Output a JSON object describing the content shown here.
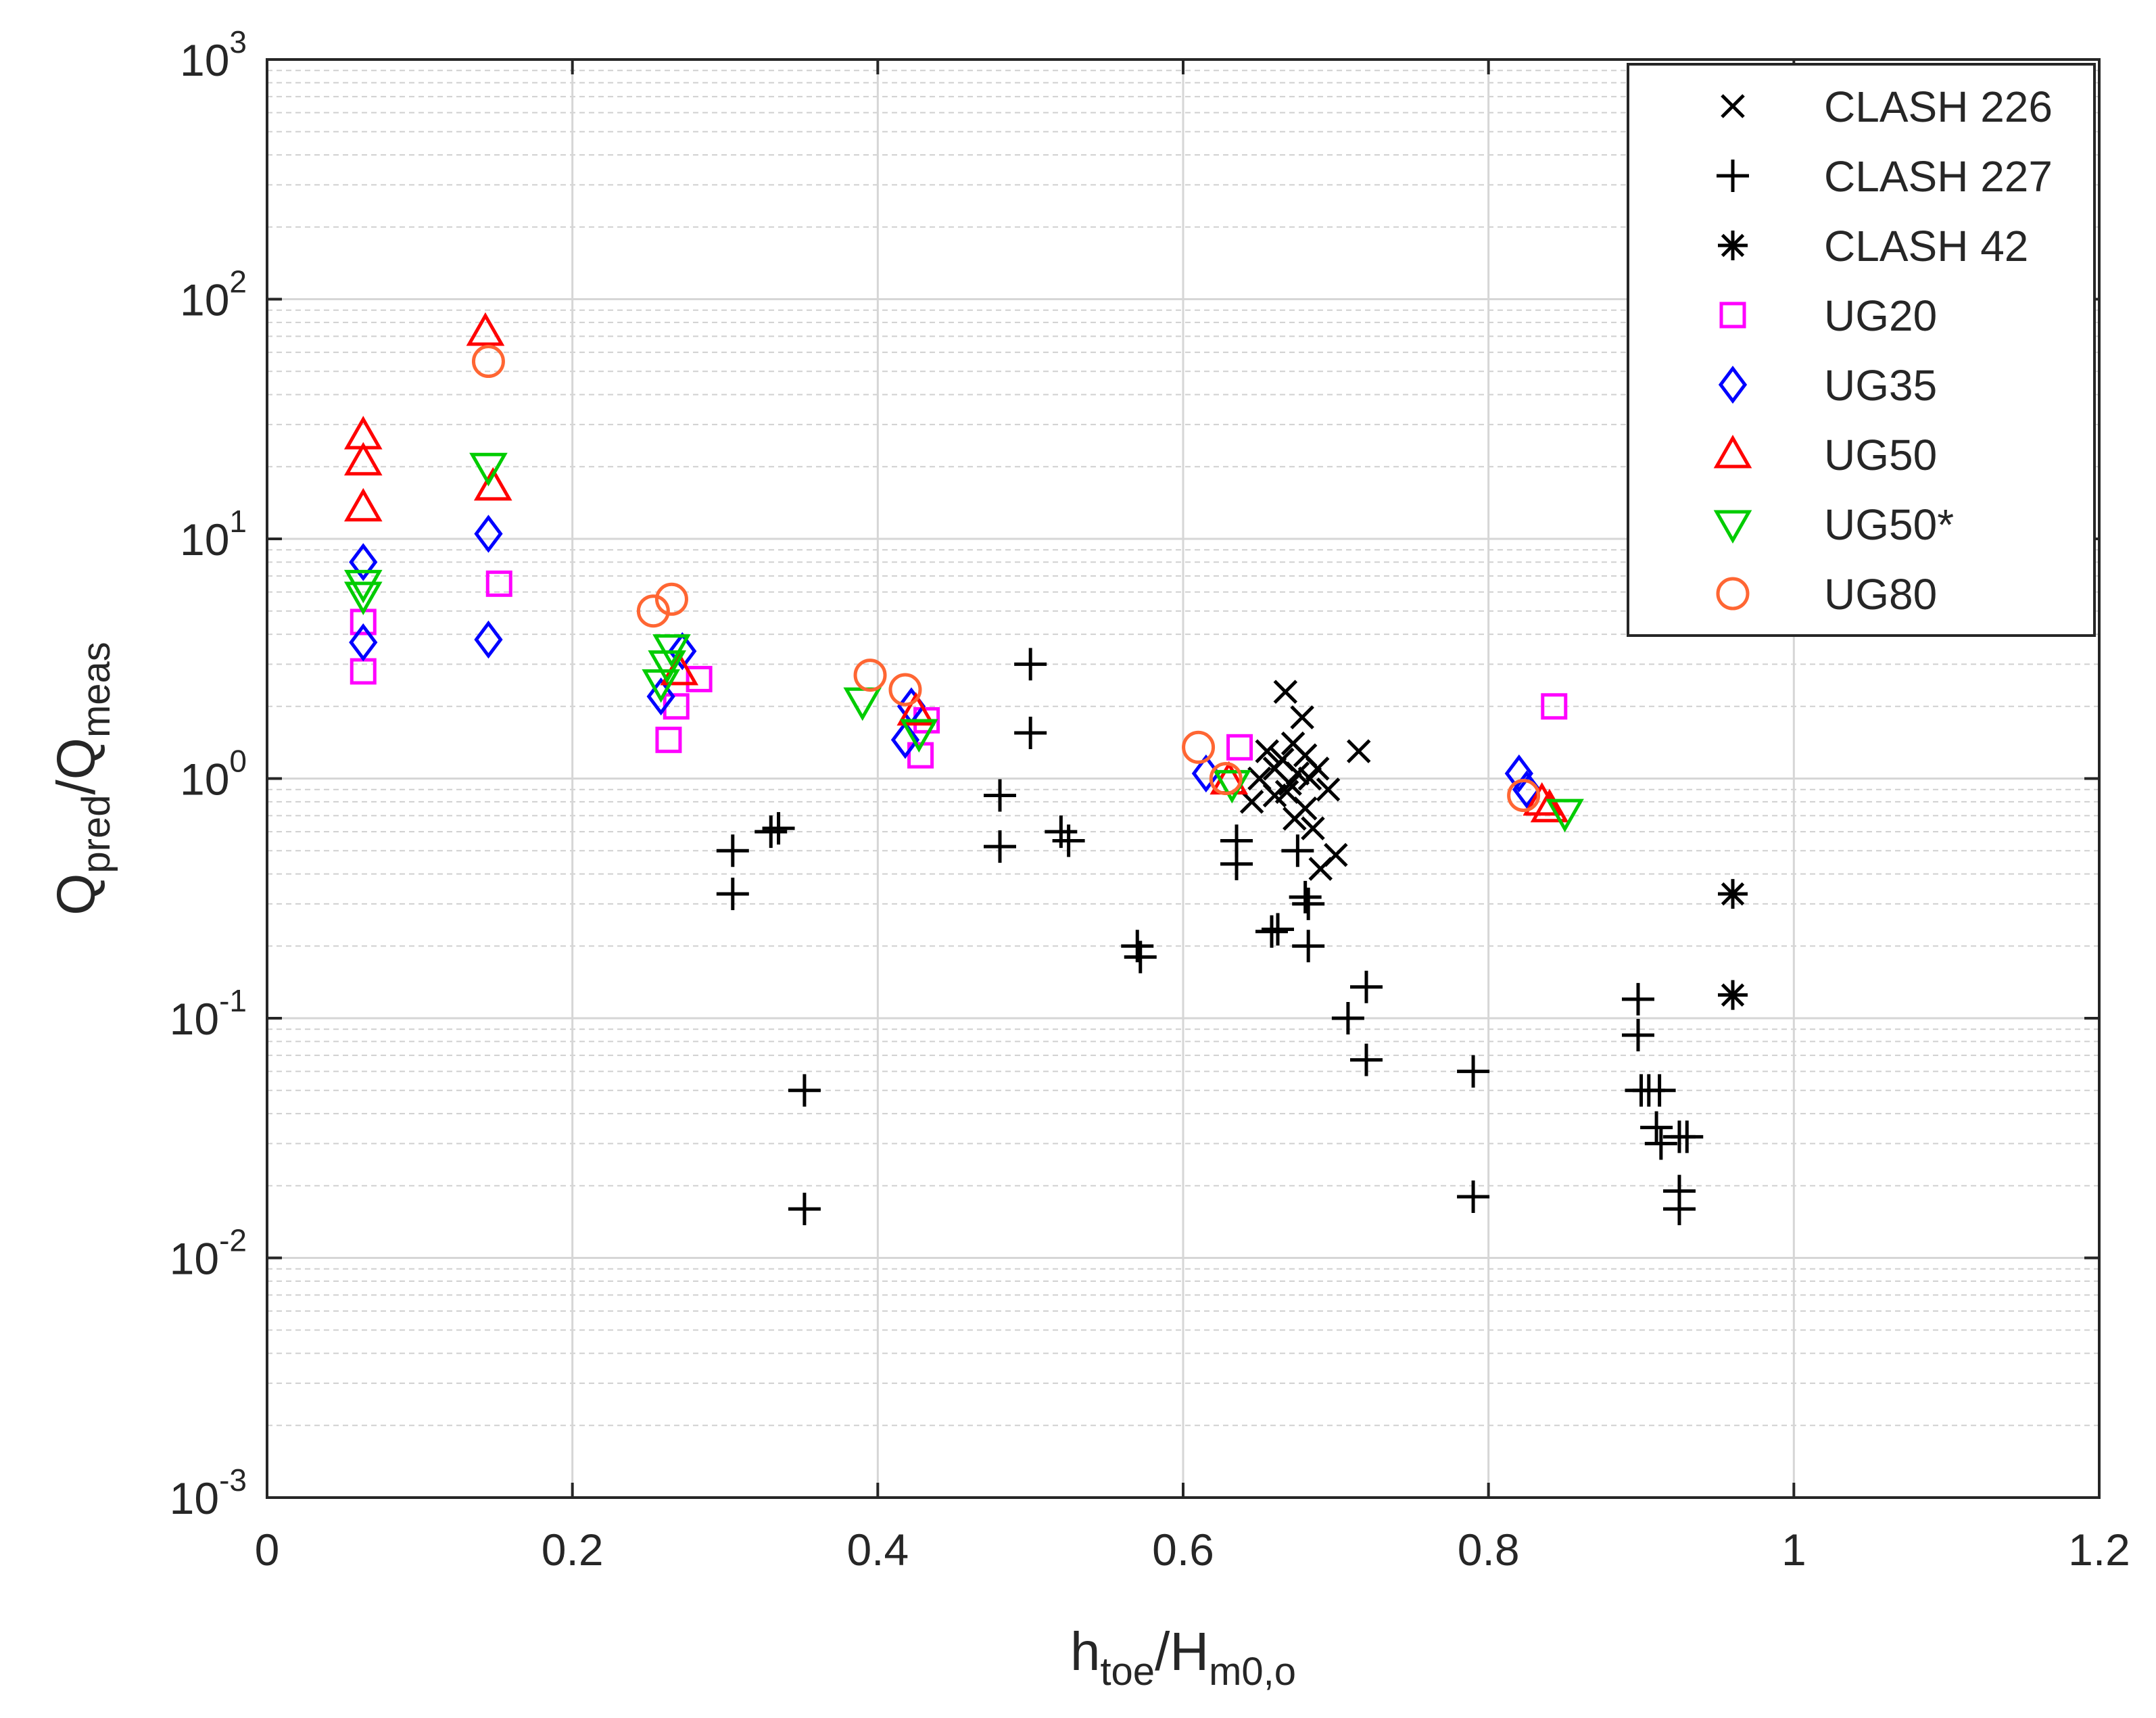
{
  "chart_data": {
    "type": "scatter",
    "title": "",
    "xlabel": {
      "base1": "h",
      "sub1": "toe",
      "sep": "/",
      "base2": "H",
      "sub2": "m0,o"
    },
    "ylabel": {
      "base1": "Q",
      "sub1": "pred",
      "sep": "/",
      "base2": "Q",
      "sub2": "meas"
    },
    "x_scale": "linear",
    "y_scale": "log",
    "xlim": [
      0,
      1.2
    ],
    "ylim_exponents": [
      -3,
      3
    ],
    "x_ticks": [
      0,
      0.2,
      0.4,
      0.6,
      0.8,
      1,
      1.2
    ],
    "x_tick_labels": [
      "0",
      "0.2",
      "0.4",
      "0.6",
      "0.8",
      "1",
      "1.2"
    ],
    "y_ticks": [
      {
        "exp": -3,
        "base": "10",
        "sup": "-3"
      },
      {
        "exp": -2,
        "base": "10",
        "sup": "-2"
      },
      {
        "exp": -1,
        "base": "10",
        "sup": "-1"
      },
      {
        "exp": 0,
        "base": "10",
        "sup": "0"
      },
      {
        "exp": 1,
        "base": "10",
        "sup": "1"
      },
      {
        "exp": 2,
        "base": "10",
        "sup": "2"
      },
      {
        "exp": 3,
        "base": "10",
        "sup": "3"
      }
    ],
    "grid": true,
    "minor_grid": true,
    "legend_position": "top-right",
    "series": [
      {
        "name": "CLASH 226",
        "marker": "x",
        "color": "#000000",
        "points": [
          [
            0.645,
            0.8
          ],
          [
            0.65,
            1.0
          ],
          [
            0.655,
            1.3
          ],
          [
            0.66,
            1.1
          ],
          [
            0.66,
            0.85
          ],
          [
            0.665,
            1.2
          ],
          [
            0.667,
            2.3
          ],
          [
            0.67,
            0.95
          ],
          [
            0.672,
            1.4
          ],
          [
            0.675,
            1.05
          ],
          [
            0.678,
            1.8
          ],
          [
            0.68,
            1.25
          ],
          [
            0.68,
            0.75
          ],
          [
            0.683,
            1.0
          ],
          [
            0.685,
            0.62
          ],
          [
            0.688,
            1.1
          ],
          [
            0.69,
            0.42
          ],
          [
            0.695,
            0.9
          ],
          [
            0.7,
            0.48
          ],
          [
            0.715,
            1.3
          ],
          [
            0.668,
            0.88
          ],
          [
            0.673,
            0.68
          ]
        ]
      },
      {
        "name": "CLASH 227",
        "marker": "+",
        "color": "#000000",
        "points": [
          [
            0.305,
            0.5
          ],
          [
            0.305,
            0.33
          ],
          [
            0.33,
            0.6
          ],
          [
            0.335,
            0.62
          ],
          [
            0.352,
            0.05
          ],
          [
            0.352,
            0.016
          ],
          [
            0.48,
            0.85
          ],
          [
            0.48,
            0.52
          ],
          [
            0.5,
            3.0
          ],
          [
            0.5,
            1.55
          ],
          [
            0.52,
            0.6
          ],
          [
            0.525,
            0.55
          ],
          [
            0.57,
            0.2
          ],
          [
            0.572,
            0.18
          ],
          [
            0.635,
            0.55
          ],
          [
            0.635,
            0.44
          ],
          [
            0.658,
            0.23
          ],
          [
            0.662,
            0.235
          ],
          [
            0.675,
            0.5
          ],
          [
            0.68,
            0.32
          ],
          [
            0.682,
            0.3
          ],
          [
            0.682,
            0.2
          ],
          [
            0.708,
            0.1
          ],
          [
            0.72,
            0.135
          ],
          [
            0.72,
            0.067
          ],
          [
            0.79,
            0.06
          ],
          [
            0.79,
            0.018
          ],
          [
            0.898,
            0.12
          ],
          [
            0.898,
            0.085
          ],
          [
            0.9,
            0.05
          ],
          [
            0.905,
            0.05
          ],
          [
            0.91,
            0.035
          ],
          [
            0.912,
            0.05
          ],
          [
            0.913,
            0.03
          ],
          [
            0.925,
            0.032
          ],
          [
            0.93,
            0.032
          ],
          [
            0.925,
            0.019
          ],
          [
            0.925,
            0.016
          ]
        ]
      },
      {
        "name": "CLASH 42",
        "marker": "*",
        "color": "#000000",
        "points": [
          [
            0.96,
            0.33
          ],
          [
            0.96,
            0.125
          ]
        ]
      },
      {
        "name": "UG20",
        "marker": "square",
        "color": "#ff00ff",
        "points": [
          [
            0.063,
            2.8
          ],
          [
            0.063,
            4.5
          ],
          [
            0.152,
            6.5
          ],
          [
            0.263,
            1.45
          ],
          [
            0.268,
            2.0
          ],
          [
            0.283,
            2.6
          ],
          [
            0.428,
            1.25
          ],
          [
            0.432,
            1.75
          ],
          [
            0.637,
            1.35
          ],
          [
            0.843,
            2.0
          ]
        ]
      },
      {
        "name": "UG35",
        "marker": "diamond",
        "color": "#0000ff",
        "points": [
          [
            0.063,
            3.7
          ],
          [
            0.063,
            8.0
          ],
          [
            0.145,
            10.5
          ],
          [
            0.145,
            3.8
          ],
          [
            0.258,
            2.2
          ],
          [
            0.272,
            3.4
          ],
          [
            0.418,
            1.45
          ],
          [
            0.422,
            2.0
          ],
          [
            0.615,
            1.05
          ],
          [
            0.82,
            1.05
          ],
          [
            0.825,
            0.9
          ]
        ]
      },
      {
        "name": "UG50",
        "marker": "triangle-up",
        "color": "#ff0000",
        "points": [
          [
            0.063,
            27.0
          ],
          [
            0.063,
            21.0
          ],
          [
            0.063,
            13.5
          ],
          [
            0.143,
            73.0
          ],
          [
            0.148,
            16.5
          ],
          [
            0.27,
            2.8
          ],
          [
            0.425,
            1.9
          ],
          [
            0.63,
            0.98
          ],
          [
            0.835,
            0.8
          ],
          [
            0.84,
            0.75
          ]
        ]
      },
      {
        "name": "UG50*",
        "marker": "triangle-down",
        "color": "#00cc00",
        "points": [
          [
            0.063,
            6.5
          ],
          [
            0.063,
            5.8
          ],
          [
            0.145,
            20.0
          ],
          [
            0.258,
            2.5
          ],
          [
            0.262,
            3.0
          ],
          [
            0.265,
            3.5
          ],
          [
            0.39,
            2.1
          ],
          [
            0.427,
            1.55
          ],
          [
            0.632,
            0.95
          ],
          [
            0.85,
            0.72
          ]
        ]
      },
      {
        "name": "UG80",
        "marker": "circle",
        "color": "#ff6633",
        "points": [
          [
            0.145,
            55.0
          ],
          [
            0.253,
            5.0
          ],
          [
            0.265,
            5.6
          ],
          [
            0.395,
            2.7
          ],
          [
            0.418,
            2.35
          ],
          [
            0.61,
            1.35
          ],
          [
            0.628,
            1.0
          ],
          [
            0.823,
            0.85
          ]
        ]
      }
    ]
  }
}
